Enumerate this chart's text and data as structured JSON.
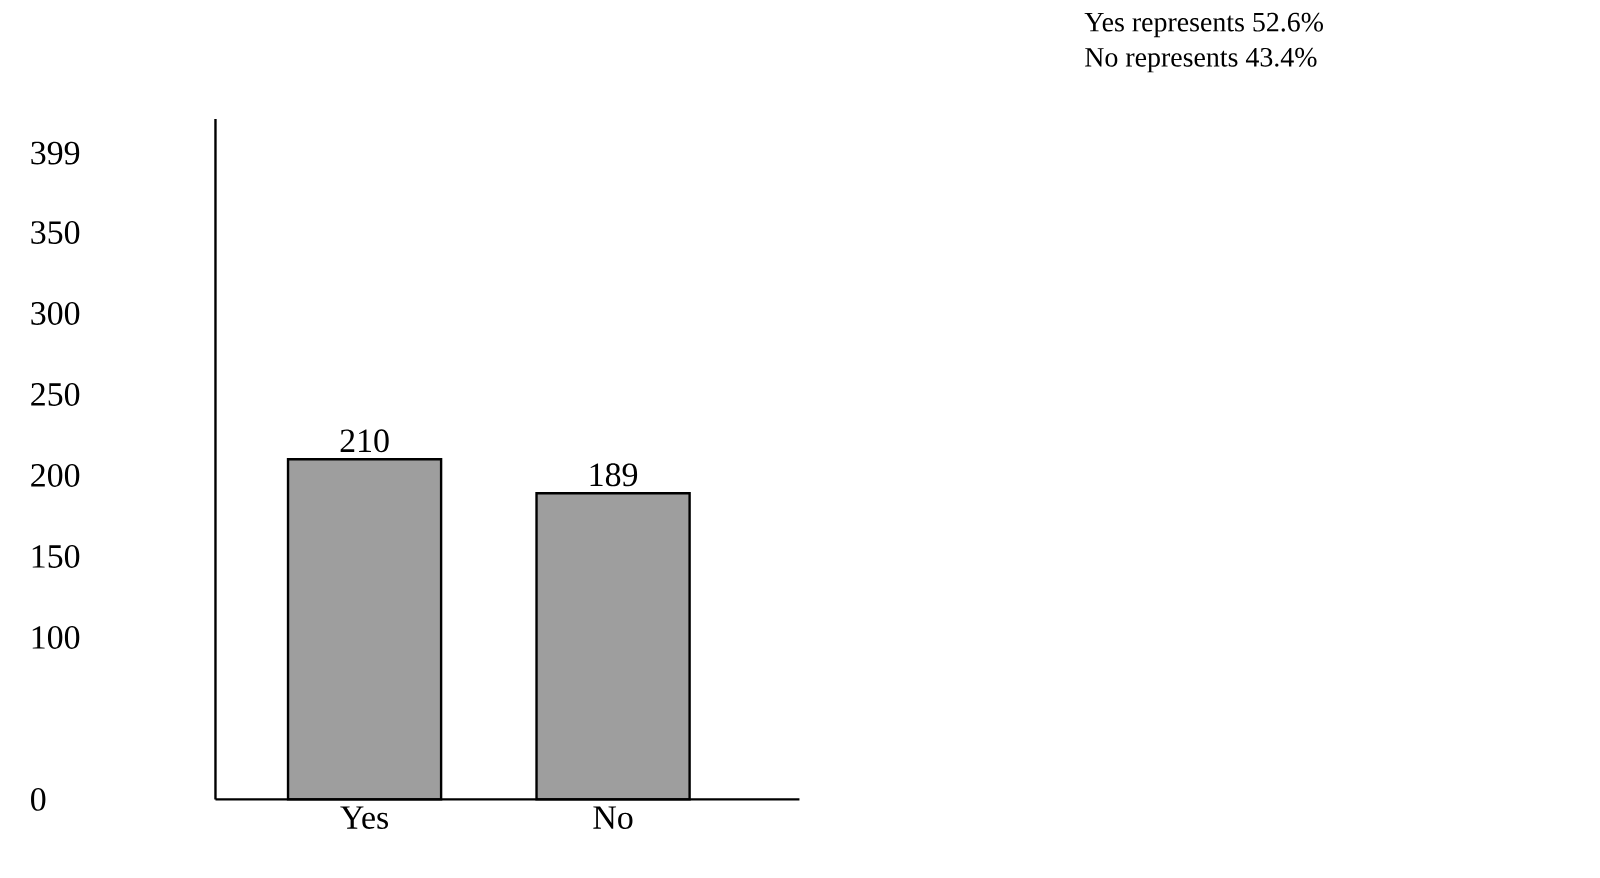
{
  "chart_data": {
    "type": "bar",
    "categories": [
      "Yes",
      "No"
    ],
    "values": [
      210,
      189
    ],
    "color": "#9e9e9e",
    "data_labels": true,
    "ylim": [
      0,
      420
    ],
    "yticks": [
      0,
      100,
      150,
      200,
      250,
      300,
      350,
      399
    ],
    "annotations": [
      "Yes represents 52.6%",
      "No represents 43.4%"
    ]
  }
}
